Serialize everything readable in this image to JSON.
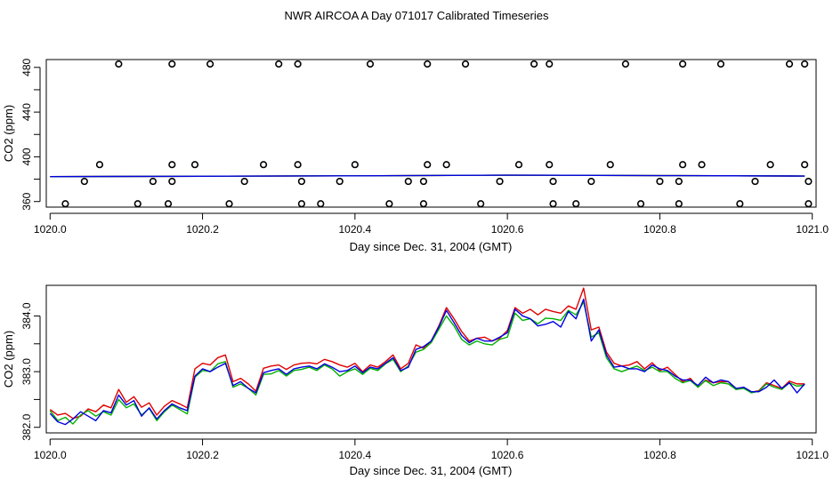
{
  "title": "NWR AIRCOA A  Day 071017  Calibrated Timeseries",
  "colors": {
    "red": "#e00000",
    "green": "#00b000",
    "blue": "#0000e0",
    "ink": "#000000"
  },
  "chart_data": [
    {
      "type": "scatter",
      "name": "calibration-panel",
      "xlabel": "Day since Dec. 31, 2004 (GMT)",
      "ylabel": "CO2 (ppm)",
      "xlim": [
        1019.995,
        1021.005
      ],
      "ylim": [
        355,
        487
      ],
      "xticks": [
        1020.0,
        1020.2,
        1020.4,
        1020.6,
        1020.8,
        1021.0
      ],
      "xtick_labels": [
        "1020.0",
        "1020.2",
        "1020.4",
        "1020.6",
        "1020.8",
        "1021.0"
      ],
      "yticks": [
        360,
        400,
        440,
        480
      ],
      "ytick_labels": [
        "360",
        "400",
        "440",
        "480"
      ],
      "points_high": {
        "y": 483,
        "x": [
          1020.09,
          1020.16,
          1020.21,
          1020.3,
          1020.325,
          1020.42,
          1020.495,
          1020.545,
          1020.635,
          1020.655,
          1020.755,
          1020.83,
          1020.88,
          1020.97,
          1020.99
        ]
      },
      "points_mid": {
        "y": 393,
        "x": [
          1020.065,
          1020.16,
          1020.19,
          1020.28,
          1020.325,
          1020.4,
          1020.495,
          1020.52,
          1020.615,
          1020.655,
          1020.735,
          1020.83,
          1020.855,
          1020.945,
          1020.99
        ]
      },
      "points_low": {
        "y": 378,
        "x": [
          1020.045,
          1020.135,
          1020.16,
          1020.255,
          1020.33,
          1020.38,
          1020.47,
          1020.49,
          1020.59,
          1020.66,
          1020.71,
          1020.8,
          1020.825,
          1020.925,
          1020.995
        ]
      },
      "points_vlow": {
        "y": 358,
        "x": [
          1020.02,
          1020.115,
          1020.155,
          1020.235,
          1020.33,
          1020.355,
          1020.445,
          1020.49,
          1020.565,
          1020.66,
          1020.69,
          1020.775,
          1020.825,
          1020.905,
          1020.995
        ]
      },
      "series": [
        {
          "name": "red",
          "color": "#e00000",
          "x": [
            1020.0,
            1020.2,
            1020.4,
            1020.6,
            1020.8,
            1020.99
          ],
          "y": [
            382.3,
            382.6,
            383.0,
            383.6,
            383.2,
            382.8
          ]
        },
        {
          "name": "green",
          "color": "#00b000",
          "x": [
            1020.0,
            1020.2,
            1020.4,
            1020.6,
            1020.8,
            1020.99
          ],
          "y": [
            382.3,
            382.6,
            383.0,
            383.6,
            383.2,
            382.8
          ]
        },
        {
          "name": "blue",
          "color": "#0000e0",
          "x": [
            1020.0,
            1020.2,
            1020.4,
            1020.6,
            1020.8,
            1020.99
          ],
          "y": [
            382.3,
            382.6,
            383.0,
            383.6,
            383.2,
            382.8
          ]
        }
      ]
    },
    {
      "type": "line",
      "name": "timeseries-panel",
      "xlabel": "Day since Dec. 31, 2004 (GMT)",
      "ylabel": "CO2 (ppm)",
      "xlim": [
        1019.995,
        1021.005
      ],
      "ylim": [
        381.9,
        384.55
      ],
      "xticks": [
        1020.0,
        1020.2,
        1020.4,
        1020.6,
        1020.8,
        1021.0
      ],
      "xtick_labels": [
        "1020.0",
        "1020.2",
        "1020.4",
        "1020.6",
        "1020.8",
        "1021.0"
      ],
      "yticks": [
        382.0,
        383.0,
        384.0
      ],
      "ytick_labels": [
        "382.0",
        "383.0",
        "384.0"
      ],
      "x": [
        1020.0,
        1020.01,
        1020.02,
        1020.03,
        1020.04,
        1020.05,
        1020.06,
        1020.07,
        1020.08,
        1020.09,
        1020.1,
        1020.11,
        1020.12,
        1020.13,
        1020.14,
        1020.15,
        1020.16,
        1020.17,
        1020.18,
        1020.19,
        1020.2,
        1020.21,
        1020.22,
        1020.23,
        1020.24,
        1020.25,
        1020.26,
        1020.27,
        1020.28,
        1020.29,
        1020.3,
        1020.31,
        1020.32,
        1020.33,
        1020.34,
        1020.35,
        1020.36,
        1020.37,
        1020.38,
        1020.39,
        1020.4,
        1020.41,
        1020.42,
        1020.43,
        1020.44,
        1020.45,
        1020.46,
        1020.47,
        1020.48,
        1020.49,
        1020.5,
        1020.51,
        1020.52,
        1020.53,
        1020.54,
        1020.55,
        1020.56,
        1020.57,
        1020.58,
        1020.59,
        1020.6,
        1020.61,
        1020.62,
        1020.63,
        1020.64,
        1020.65,
        1020.66,
        1020.67,
        1020.68,
        1020.69,
        1020.7,
        1020.71,
        1020.72,
        1020.73,
        1020.74,
        1020.75,
        1020.76,
        1020.77,
        1020.78,
        1020.79,
        1020.8,
        1020.81,
        1020.82,
        1020.83,
        1020.84,
        1020.85,
        1020.86,
        1020.87,
        1020.88,
        1020.89,
        1020.9,
        1020.91,
        1020.92,
        1020.93,
        1020.94,
        1020.95,
        1020.96,
        1020.97,
        1020.98,
        1020.99
      ],
      "series": [
        {
          "name": "red",
          "color": "#e00000",
          "values": [
            382.32,
            382.22,
            382.25,
            382.16,
            382.2,
            382.33,
            382.28,
            382.4,
            382.35,
            382.68,
            382.45,
            382.55,
            382.36,
            382.44,
            382.22,
            382.38,
            382.48,
            382.42,
            382.35,
            383.05,
            383.15,
            383.12,
            383.25,
            383.3,
            382.82,
            382.88,
            382.78,
            382.65,
            383.06,
            383.1,
            383.12,
            383.04,
            383.12,
            383.15,
            383.16,
            383.14,
            383.22,
            383.18,
            383.12,
            383.08,
            383.15,
            383.0,
            383.12,
            383.08,
            383.18,
            383.3,
            383.05,
            383.15,
            383.48,
            383.42,
            383.55,
            383.82,
            384.15,
            383.95,
            383.72,
            383.55,
            383.6,
            383.62,
            383.55,
            383.6,
            383.74,
            384.15,
            384.05,
            384.12,
            384.02,
            384.12,
            384.08,
            384.05,
            384.18,
            384.12,
            384.5,
            383.75,
            383.8,
            383.35,
            383.15,
            383.1,
            383.12,
            383.18,
            383.05,
            383.16,
            383.02,
            383.08,
            382.95,
            382.82,
            382.88,
            382.72,
            382.85,
            382.8,
            382.82,
            382.82,
            382.68,
            382.72,
            382.63,
            382.66,
            382.8,
            382.75,
            382.7,
            382.83,
            382.78,
            382.78
          ]
        },
        {
          "name": "green",
          "color": "#00b000",
          "values": [
            382.3,
            382.12,
            382.18,
            382.06,
            382.22,
            382.3,
            382.2,
            382.28,
            382.22,
            382.5,
            382.35,
            382.42,
            382.22,
            382.34,
            382.12,
            382.28,
            382.4,
            382.32,
            382.24,
            382.9,
            383.02,
            383.0,
            383.14,
            383.18,
            382.72,
            382.78,
            382.7,
            382.58,
            382.95,
            382.96,
            383.02,
            382.92,
            383.02,
            383.04,
            383.08,
            383.02,
            383.12,
            383.05,
            382.92,
            383.0,
            383.05,
            382.95,
            383.06,
            383.02,
            383.14,
            383.22,
            383.0,
            383.1,
            383.35,
            383.4,
            383.52,
            383.76,
            384.0,
            383.82,
            383.58,
            383.48,
            383.55,
            383.5,
            383.48,
            383.58,
            383.62,
            384.05,
            383.92,
            383.95,
            383.86,
            383.96,
            383.95,
            383.92,
            384.1,
            384.02,
            384.25,
            383.62,
            383.7,
            383.25,
            383.05,
            383.0,
            383.05,
            383.1,
            383.02,
            383.08,
            383.0,
            383.0,
            382.88,
            382.8,
            382.84,
            382.72,
            382.84,
            382.75,
            382.8,
            382.78,
            382.68,
            382.7,
            382.62,
            382.65,
            382.78,
            382.72,
            382.68,
            382.8,
            382.74,
            382.76
          ]
        },
        {
          "name": "blue",
          "color": "#0000e0",
          "values": [
            382.25,
            382.1,
            382.05,
            382.15,
            382.28,
            382.2,
            382.12,
            382.3,
            382.26,
            382.58,
            382.4,
            382.48,
            382.2,
            382.35,
            382.15,
            382.3,
            382.42,
            382.35,
            382.3,
            382.92,
            383.05,
            383.0,
            383.08,
            383.15,
            382.75,
            382.82,
            382.7,
            382.62,
            382.98,
            383.02,
            383.05,
            382.95,
            383.05,
            383.08,
            383.1,
            383.05,
            383.14,
            383.08,
            383.0,
            383.02,
            383.1,
            382.98,
            383.08,
            383.05,
            383.15,
            383.25,
            383.02,
            383.08,
            383.4,
            383.45,
            383.55,
            383.8,
            384.1,
            383.88,
            383.65,
            383.52,
            383.6,
            383.55,
            383.55,
            383.62,
            383.7,
            384.12,
            384.0,
            383.95,
            383.82,
            383.85,
            383.9,
            383.8,
            384.08,
            383.95,
            384.3,
            383.55,
            383.75,
            383.3,
            383.08,
            383.1,
            383.05,
            383.05,
            383.0,
            383.12,
            383.05,
            383.02,
            382.92,
            382.85,
            382.85,
            382.75,
            382.9,
            382.8,
            382.85,
            382.82,
            382.7,
            382.72,
            382.64,
            382.64,
            382.72,
            382.85,
            382.7,
            382.8,
            382.62,
            382.78
          ]
        }
      ]
    }
  ]
}
